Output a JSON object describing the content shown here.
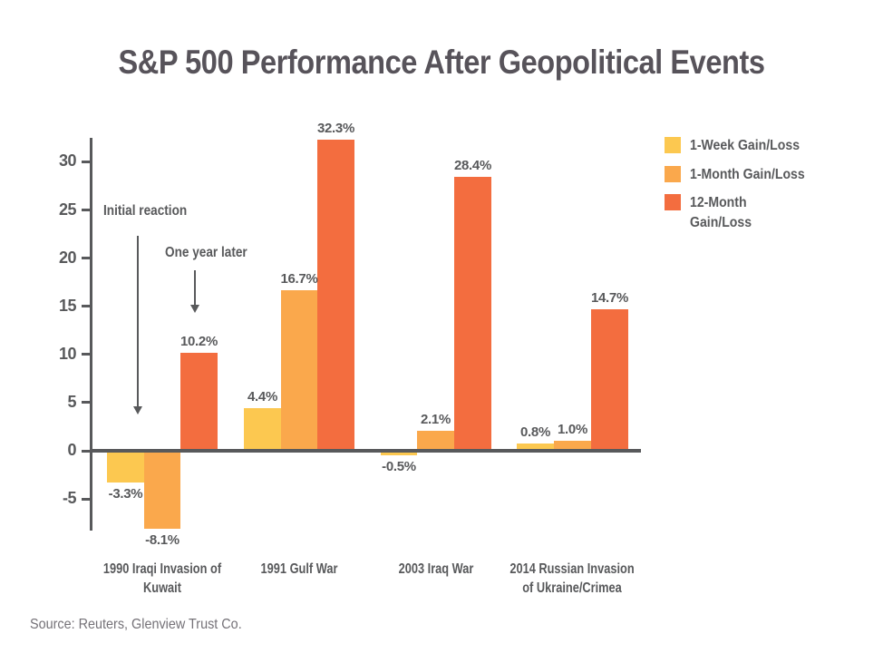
{
  "title": "S&P 500 Performance After Geopolitical Events",
  "source": "Source: Reuters, Glenview Trust Co.",
  "annotations": [
    {
      "text": "Initial reaction"
    },
    {
      "text": "One year later"
    }
  ],
  "colors": {
    "week": "#FCC850",
    "month": "#FAA84C",
    "year": "#F36D3F",
    "text": "#58595B",
    "axis": "#58595B"
  },
  "chart_data": {
    "type": "bar",
    "title": "S&P 500 Performance After Geopolitical Events",
    "categories": [
      "1990 Iraqi Invasion of\nKuwait",
      "1991 Gulf War",
      "2003 Iraq War",
      "2014 Russian Invasion\nof Ukraine/Crimea"
    ],
    "series": [
      {
        "name": "1-Week Gain/Loss",
        "legend_label": "1-Week Gain/Loss",
        "color": "#FCC850",
        "values": [
          -3.3,
          4.4,
          -0.5,
          0.8
        ],
        "labels": [
          "-3.3%",
          "4.4%",
          "-0.5%",
          "0.8%"
        ]
      },
      {
        "name": "1-Month Gain/Loss",
        "legend_label": "1-Month Gain/Loss",
        "color": "#FAA84C",
        "values": [
          -8.1,
          16.7,
          2.1,
          1.0
        ],
        "labels": [
          "-8.1%",
          "16.7%",
          "2.1%",
          "1.0%"
        ]
      },
      {
        "name": "12-Month Gain/Loss",
        "legend_label": "12-Month\nGain/Loss",
        "color": "#F36D3F",
        "values": [
          10.2,
          32.3,
          28.4,
          14.7
        ],
        "labels": [
          "10.2%",
          "32.3%",
          "28.4%",
          "14.7%"
        ]
      }
    ],
    "yticks": [
      30,
      25,
      20,
      15,
      10,
      5,
      0,
      -5
    ],
    "ylim": [
      -8.5,
      32.5
    ],
    "xlabel": "",
    "ylabel": "",
    "grid": false,
    "legend_position": "right"
  }
}
